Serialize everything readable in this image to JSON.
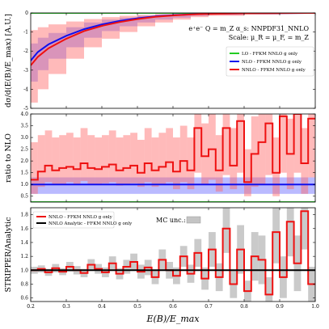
{
  "chart_data": [
    {
      "type": "line",
      "panel": "top",
      "ylabel": "dσ/d(E(B)/E_max) [A.U.]",
      "ylim": [
        -5,
        0
      ],
      "yticks": [
        "-5",
        "-4",
        "-3",
        "-2",
        "-1",
        "0"
      ],
      "annotation_lines": [
        "e⁺e⁻ Q = m_Z α_s: NNPDF31_NNLO",
        "Scale: μ_R = μ_F, = m_Z"
      ],
      "legend": [
        "LO - FFKM NNLO g only",
        "NLO - FFKM NNLO g only",
        "NNLO - FFKM NNLO g only"
      ],
      "legend_position": "right",
      "series": [
        {
          "name": "LO - FFKM NNLO g only",
          "color": "#22cc22",
          "x": [
            0.2,
            1.0
          ],
          "y": [
            0.0,
            0.0
          ]
        },
        {
          "name": "NLO - FFKM NNLO g only",
          "color": "#1010ee",
          "x": [
            0.2,
            0.22,
            0.25,
            0.3,
            0.35,
            0.4,
            0.45,
            0.5,
            0.55,
            0.6,
            0.65,
            0.7,
            0.8,
            0.9,
            1.0
          ],
          "y": [
            -2.5,
            -2.05,
            -1.65,
            -1.2,
            -0.85,
            -0.6,
            -0.42,
            -0.28,
            -0.18,
            -0.12,
            -0.07,
            -0.04,
            -0.02,
            -0.01,
            0.0
          ],
          "band_low": [
            -3.6,
            -3.0,
            -2.4,
            -1.8,
            -1.3,
            -0.95,
            -0.7,
            -0.5,
            -0.35,
            -0.25,
            -0.15,
            -0.1,
            -0.05,
            -0.03,
            -0.01
          ],
          "band_high": [
            -1.6,
            -1.3,
            -1.05,
            -0.75,
            -0.5,
            -0.35,
            -0.25,
            -0.15,
            -0.08,
            -0.05,
            -0.03,
            -0.02,
            -0.01,
            0.0,
            0.0
          ]
        },
        {
          "name": "NNLO - FFKM NNLO g only",
          "color": "#ee1111",
          "x": [
            0.2,
            0.22,
            0.25,
            0.3,
            0.35,
            0.4,
            0.45,
            0.5,
            0.55,
            0.6,
            0.65,
            0.7,
            0.8,
            0.9,
            1.0
          ],
          "y": [
            -2.75,
            -2.3,
            -1.85,
            -1.35,
            -0.95,
            -0.68,
            -0.48,
            -0.32,
            -0.2,
            -0.13,
            -0.08,
            -0.05,
            -0.02,
            -0.01,
            0.0
          ],
          "band_low": [
            -4.7,
            -4.0,
            -3.2,
            -2.4,
            -1.8,
            -1.35,
            -1.0,
            -0.7,
            -0.5,
            -0.35,
            -0.22,
            -0.15,
            -0.08,
            -0.04,
            -0.02
          ],
          "band_high": [
            -0.9,
            -0.75,
            -0.6,
            -0.45,
            -0.32,
            -0.22,
            -0.15,
            -0.1,
            -0.06,
            -0.04,
            -0.02,
            -0.01,
            0.0,
            0.0,
            0.0
          ]
        }
      ]
    },
    {
      "type": "line",
      "panel": "middle",
      "ylabel": "ratio to NLO",
      "ylim": [
        0.25,
        4.0
      ],
      "yticks": [
        "0.5",
        "1.0",
        "1.5",
        "2.0",
        "2.5",
        "3.0",
        "3.5",
        "4.0"
      ],
      "series": [
        {
          "name": "LO - FFKM NNLO g only",
          "color": "#22cc22",
          "x": [
            0.2,
            1.0
          ],
          "y": [
            0.25,
            0.25
          ]
        },
        {
          "name": "NLO - FFKM NNLO g only",
          "color": "#1010ee",
          "x": [
            0.2,
            1.0
          ],
          "y": [
            1.0,
            1.0
          ],
          "band_low": [
            0.6,
            0.6
          ],
          "band_high": [
            1.3,
            1.3
          ]
        },
        {
          "name": "NNLO - FFKM NNLO g only",
          "color": "#ee1111",
          "step": true,
          "x": [
            0.2,
            0.22,
            0.24,
            0.26,
            0.28,
            0.3,
            0.32,
            0.34,
            0.36,
            0.38,
            0.4,
            0.42,
            0.44,
            0.46,
            0.48,
            0.5,
            0.52,
            0.54,
            0.56,
            0.58,
            0.6,
            0.62,
            0.64,
            0.66,
            0.68,
            0.7,
            0.72,
            0.74,
            0.76,
            0.78,
            0.8,
            0.82,
            0.84,
            0.86,
            0.88,
            0.9,
            0.92,
            0.94,
            0.96,
            0.98
          ],
          "y": [
            1.2,
            1.55,
            1.8,
            1.6,
            1.7,
            1.75,
            1.65,
            1.9,
            1.7,
            1.65,
            1.75,
            1.85,
            1.6,
            1.7,
            1.8,
            1.5,
            1.9,
            1.6,
            1.75,
            1.95,
            1.55,
            2.0,
            1.6,
            3.4,
            2.2,
            2.5,
            1.6,
            3.4,
            1.8,
            3.7,
            1.1,
            2.3,
            2.8,
            3.6,
            1.5,
            3.9,
            2.3,
            4.0,
            1.9,
            3.8
          ],
          "band_low": [
            0.6,
            0.9,
            1.1,
            1.0,
            1.0,
            1.1,
            1.0,
            1.15,
            1.0,
            1.0,
            1.05,
            1.1,
            0.95,
            1.0,
            1.05,
            0.9,
            1.1,
            0.9,
            1.0,
            1.1,
            0.8,
            1.1,
            0.8,
            1.5,
            1.0,
            1.2,
            0.7,
            1.4,
            0.8,
            1.5,
            0.5,
            0.9,
            1.0,
            1.4,
            0.5,
            1.5,
            0.8,
            1.5,
            0.6,
            1.3
          ],
          "band_high": [
            2.8,
            3.1,
            3.3,
            3.0,
            3.1,
            3.2,
            3.0,
            3.4,
            3.1,
            3.0,
            3.1,
            3.3,
            3.0,
            3.1,
            3.2,
            2.9,
            3.4,
            3.0,
            3.2,
            3.4,
            3.0,
            3.5,
            3.0,
            4.0,
            3.6,
            4.0,
            3.1,
            4.0,
            3.4,
            4.0,
            2.5,
            3.9,
            4.0,
            4.0,
            3.0,
            4.0,
            3.8,
            4.0,
            3.4,
            4.0
          ]
        }
      ]
    },
    {
      "type": "line",
      "panel": "bottom",
      "xlabel": "E(B)/E_max",
      "ylabel": "STRIPPER/Analytic",
      "xlim": [
        0.2,
        1.0
      ],
      "ylim": [
        0.55,
        1.9
      ],
      "xticks": [
        "0.2",
        "0.3",
        "0.4",
        "0.5",
        "0.6",
        "0.7",
        "0.8",
        "0.9",
        "1.0"
      ],
      "yticks": [
        "0.6",
        "0.8",
        "1.0",
        "1.2",
        "1.4",
        "1.6",
        "1.8"
      ],
      "legend": [
        "NNLO - FFKM NNLO g only",
        "NNLO Analytic - FFKM NNLO g only"
      ],
      "annotation": "MC unc.:",
      "series": [
        {
          "name": "NNLO - FFKM NNLO g only",
          "color": "#ee1111",
          "step": true,
          "x": [
            0.2,
            0.22,
            0.24,
            0.26,
            0.28,
            0.3,
            0.32,
            0.34,
            0.36,
            0.38,
            0.4,
            0.42,
            0.44,
            0.46,
            0.48,
            0.5,
            0.52,
            0.54,
            0.56,
            0.58,
            0.6,
            0.62,
            0.64,
            0.66,
            0.68,
            0.7,
            0.72,
            0.74,
            0.76,
            0.78,
            0.8,
            0.82,
            0.84,
            0.86,
            0.88,
            0.9,
            0.92,
            0.94,
            0.96,
            0.98
          ],
          "y": [
            1.0,
            1.02,
            0.97,
            1.03,
            0.98,
            1.05,
            1.0,
            0.96,
            1.08,
            1.02,
            0.97,
            1.1,
            0.95,
            1.05,
            1.12,
            0.98,
            1.04,
            0.9,
            1.15,
            1.0,
            0.92,
            1.2,
            0.95,
            1.25,
            0.88,
            1.3,
            0.9,
            1.6,
            0.8,
            1.3,
            0.7,
            1.2,
            1.15,
            0.65,
            1.55,
            0.9,
            1.7,
            1.1,
            1.85,
            0.8
          ],
          "unc_low": [
            0.95,
            0.97,
            0.92,
            0.97,
            0.93,
            0.98,
            0.94,
            0.9,
            1.0,
            0.95,
            0.9,
            1.0,
            0.87,
            0.95,
            1.0,
            0.88,
            0.93,
            0.8,
            1.0,
            0.88,
            0.8,
            1.05,
            0.82,
            1.05,
            0.72,
            1.05,
            0.7,
            1.25,
            0.6,
            0.95,
            0.55,
            0.85,
            0.8,
            0.55,
            1.1,
            0.6,
            1.2,
            0.7,
            1.3,
            0.55
          ],
          "unc_high": [
            1.05,
            1.07,
            1.02,
            1.09,
            1.03,
            1.12,
            1.06,
            1.02,
            1.16,
            1.09,
            1.04,
            1.2,
            1.03,
            1.15,
            1.24,
            1.08,
            1.15,
            1.0,
            1.3,
            1.12,
            1.04,
            1.35,
            1.08,
            1.45,
            1.04,
            1.55,
            1.1,
            1.9,
            1.0,
            1.65,
            0.85,
            1.55,
            1.5,
            0.9,
            1.9,
            1.2,
            1.9,
            1.5,
            1.9,
            1.05
          ]
        },
        {
          "name": "NNLO Analytic - FFKM NNLO g only",
          "color": "#000000",
          "x": [
            0.2,
            1.0
          ],
          "y": [
            1.0,
            1.0
          ]
        }
      ]
    }
  ]
}
